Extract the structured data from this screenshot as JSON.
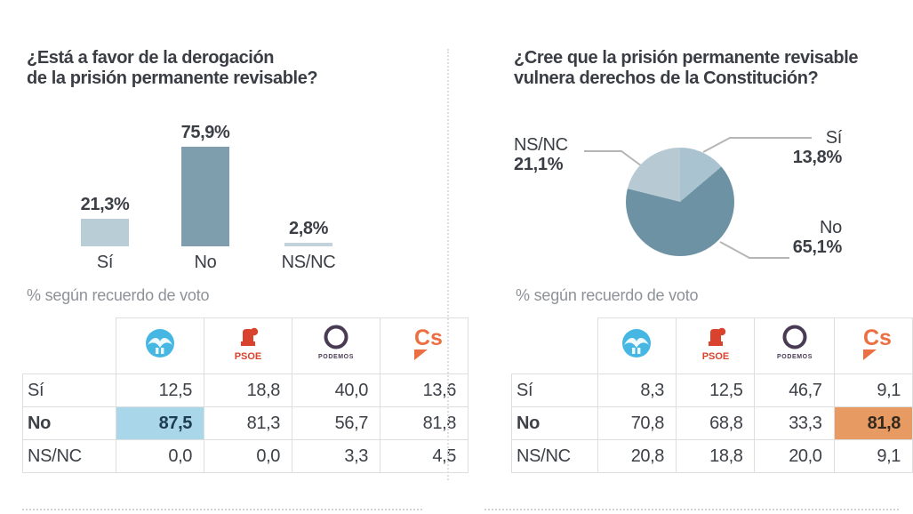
{
  "panels": [
    {
      "title_line1": "¿Está a favor de la derogación",
      "title_line2": "de la prisión permanente revisable?",
      "subtitle": "% según recuerdo de voto"
    },
    {
      "title_line1": "¿Cree que la prisión permanente revisable",
      "title_line2": "vulnera derechos de la Constitución?",
      "subtitle": "% según recuerdo de voto"
    }
  ],
  "chart_data": [
    {
      "type": "bar",
      "title": "¿Está a favor de la derogación de la prisión permanente revisable?",
      "categories": [
        "Sí",
        "No",
        "NS/NC"
      ],
      "values": [
        21.3,
        75.9,
        2.8
      ],
      "labels": [
        "21,3%",
        "75,9%",
        "2,8%"
      ],
      "unit": "%",
      "ylim": [
        0,
        100
      ],
      "grid": false,
      "colors": [
        "#b9cdd7",
        "#7e9dad",
        "#c2d2da"
      ]
    },
    {
      "type": "pie",
      "title": "¿Cree que la prisión permanente revisable vulnera derechos de la Constitución?",
      "categories": [
        "Sí",
        "No",
        "NS/NC"
      ],
      "values": [
        13.8,
        65.1,
        21.1
      ],
      "labels": [
        "13,8%",
        "65,1%",
        "21,1%"
      ],
      "start_angle": "12-oclock-clockwise",
      "colors": [
        "#a9c3d1",
        "#6d92a4",
        "#b7c9d3"
      ]
    },
    {
      "type": "table",
      "title": "% según recuerdo de voto (derogación)",
      "columns": [
        {
          "party": "PP",
          "icon": "pp-logo-icon"
        },
        {
          "party": "PSOE",
          "icon": "psoe-logo-icon"
        },
        {
          "party": "PODEMOS",
          "icon": "podemos-logo-icon"
        },
        {
          "party": "Cs",
          "icon": "cs-logo-icon"
        }
      ],
      "rows": [
        {
          "label": "Sí",
          "bold": false,
          "values": [
            "12,5",
            "18,8",
            "40,0",
            "13,6"
          ]
        },
        {
          "label": "No",
          "bold": true,
          "values": [
            "87,5",
            "81,3",
            "56,7",
            "81,8"
          ],
          "highlight": {
            "col": 0,
            "bg": "#a9d6e8",
            "text": "#1d3c50"
          }
        },
        {
          "label": "NS/NC",
          "bold": false,
          "values": [
            "0,0",
            "0,0",
            "3,3",
            "4,5"
          ]
        }
      ]
    },
    {
      "type": "table",
      "title": "% según recuerdo de voto (vulnera derechos)",
      "columns": [
        {
          "party": "PP",
          "icon": "pp-logo-icon"
        },
        {
          "party": "PSOE",
          "icon": "psoe-logo-icon"
        },
        {
          "party": "PODEMOS",
          "icon": "podemos-logo-icon"
        },
        {
          "party": "Cs",
          "icon": "cs-logo-icon"
        }
      ],
      "rows": [
        {
          "label": "Sí",
          "bold": false,
          "values": [
            "8,3",
            "12,5",
            "46,7",
            "9,1"
          ]
        },
        {
          "label": "No",
          "bold": true,
          "values": [
            "70,8",
            "68,8",
            "33,3",
            "81,8"
          ],
          "highlight": {
            "col": 3,
            "bg": "#e89a63",
            "text": "#33291e"
          }
        },
        {
          "label": "NS/NC",
          "bold": false,
          "values": [
            "20,8",
            "18,8",
            "20,0",
            "9,1"
          ]
        }
      ]
    }
  ],
  "colors": {
    "text_dark": "#3a3e44",
    "text_gray": "#8e9297",
    "bar_light": "#b9cdd7",
    "bar_dark": "#7e9dad",
    "pie_si": "#a9c3d1",
    "pie_no": "#6d92a4",
    "pie_nsnc": "#b7c9d3",
    "highlight_blue": "#a9d6e8",
    "highlight_orange": "#e89a63",
    "pp_blue": "#46b7e3",
    "psoe_red": "#d9432d",
    "podemos_purple": "#4a3b55",
    "cs_orange": "#eb6f42",
    "leader_line": "#b5b5b5",
    "grid_line": "#dedede"
  }
}
